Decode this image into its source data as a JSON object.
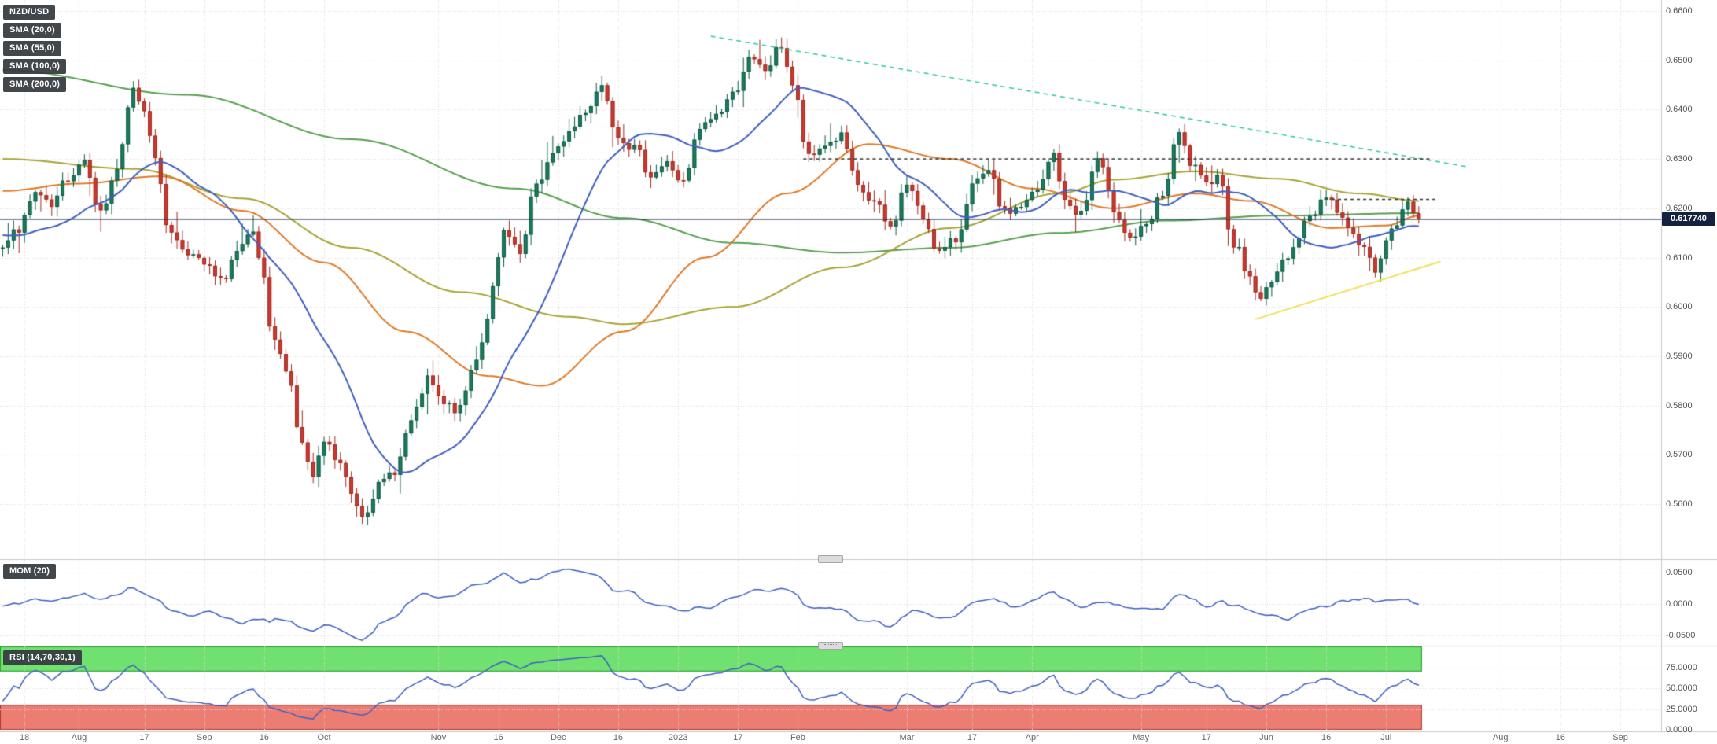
{
  "legend": {
    "symbol": "NZD/USD",
    "sma20": "SMA (20,0)",
    "sma55": "SMA (55,0)",
    "sma100": "SMA (100,0)",
    "sma200": "SMA (200,0)",
    "mom": "MOM (20)",
    "rsi": "RSI (14,70,30,1)"
  },
  "main": {
    "current_price": 0.61774,
    "current_price_label": "0.617740"
  },
  "axes": {
    "price_ticks": [
      {
        "label": "0.6600",
        "value": 0.66
      },
      {
        "label": "0.6500",
        "value": 0.65
      },
      {
        "label": "0.6400",
        "value": 0.64
      },
      {
        "label": "0.6300",
        "value": 0.63
      },
      {
        "label": "0.6200",
        "value": 0.62
      },
      {
        "label": "0.6100",
        "value": 0.61
      },
      {
        "label": "0.6000",
        "value": 0.6
      },
      {
        "label": "0.5900",
        "value": 0.59
      },
      {
        "label": "0.5800",
        "value": 0.58
      },
      {
        "label": "0.5700",
        "value": 0.57
      },
      {
        "label": "0.5600",
        "value": 0.56
      }
    ],
    "mom_ticks": [
      {
        "label": "0.0500",
        "value": 0.05
      },
      {
        "label": "0.0000",
        "value": 0.0
      },
      {
        "label": "-0.0500",
        "value": -0.05
      }
    ],
    "rsi_ticks": [
      {
        "label": "75.0000",
        "value": 75
      },
      {
        "label": "50.0000",
        "value": 50
      },
      {
        "label": "25.0000",
        "value": 25
      },
      {
        "label": "0.0000",
        "value": 0
      }
    ],
    "time_labels": [
      {
        "text": "18",
        "i": 4
      },
      {
        "text": "Aug",
        "i": 14
      },
      {
        "text": "17",
        "i": 26
      },
      {
        "text": "Sep",
        "i": 37
      },
      {
        "text": "16",
        "i": 48
      },
      {
        "text": "Oct",
        "i": 59
      },
      {
        "text": "Nov",
        "i": 80
      },
      {
        "text": "16",
        "i": 91
      },
      {
        "text": "Dec",
        "i": 102
      },
      {
        "text": "16",
        "i": 113
      },
      {
        "text": "2023",
        "i": 124
      },
      {
        "text": "17",
        "i": 135
      },
      {
        "text": "Feb",
        "i": 146
      },
      {
        "text": "Mar",
        "i": 166
      },
      {
        "text": "17",
        "i": 178
      },
      {
        "text": "Apr",
        "i": 189
      },
      {
        "text": "May",
        "i": 209
      },
      {
        "text": "17",
        "i": 221
      },
      {
        "text": "Jun",
        "i": 232
      },
      {
        "text": "16",
        "i": 243
      },
      {
        "text": "Jul",
        "i": 254
      },
      {
        "text": "Aug",
        "i": 275
      },
      {
        "text": "16",
        "i": 286
      },
      {
        "text": "Sep",
        "i": 297
      }
    ]
  },
  "colors": {
    "up": "#1c7c60",
    "up_border": "#0f5a44",
    "down": "#cb3a30",
    "down_border": "#9e2c23",
    "sma20": "#3f5fc0",
    "sma55": "#e07b28",
    "sma100": "#a8a434",
    "sma200": "#57a04f",
    "indicator_line": "#3f5fc0",
    "teal_dash": "#2fc9a2",
    "black_dash": "#333333",
    "yellow_line": "#efe25a",
    "price_line": "#1b2f55",
    "price_badge_bg": "#13233f",
    "rsi_upper_fill": "#70e170",
    "rsi_upper_border": "#2f9e2f",
    "rsi_lower_fill": "#ec7d72",
    "rsi_lower_border": "#b03a30",
    "grid": "#dcdcdc",
    "separator": "#c9c9c9",
    "axis_text": "#555555"
  },
  "chart_data": {
    "type": "candlestick",
    "symbol": "NZD/USD",
    "title": "NZD/USD daily candlestick chart with SMA(20,55,100,200), MOM(20) and RSI(14,70,30,1)",
    "ylim": [
      0.549,
      0.662
    ],
    "x_candle_count": 261,
    "x_axis_span": 305,
    "current_price": 0.61774,
    "price_keyframes": [
      [
        -25,
        0.6185
      ],
      [
        -18,
        0.615
      ],
      [
        -10,
        0.6165
      ],
      [
        -4,
        0.613
      ],
      [
        0,
        0.6125
      ],
      [
        3,
        0.616
      ],
      [
        6,
        0.623
      ],
      [
        9,
        0.62
      ],
      [
        12,
        0.6265
      ],
      [
        15,
        0.63
      ],
      [
        18,
        0.619
      ],
      [
        21,
        0.628
      ],
      [
        24,
        0.644
      ],
      [
        26,
        0.64
      ],
      [
        28,
        0.631
      ],
      [
        30,
        0.617
      ],
      [
        33,
        0.612
      ],
      [
        37,
        0.6085
      ],
      [
        40,
        0.605
      ],
      [
        43,
        0.611
      ],
      [
        46,
        0.6145
      ],
      [
        48,
        0.605
      ],
      [
        49,
        0.595
      ],
      [
        52,
        0.588
      ],
      [
        55,
        0.572
      ],
      [
        57,
        0.565
      ],
      [
        59,
        0.5725
      ],
      [
        62,
        0.568
      ],
      [
        64,
        0.562
      ],
      [
        66,
        0.558
      ],
      [
        69,
        0.5635
      ],
      [
        72,
        0.567
      ],
      [
        75,
        0.5765
      ],
      [
        78,
        0.585
      ],
      [
        81,
        0.58
      ],
      [
        84,
        0.579
      ],
      [
        86,
        0.587
      ],
      [
        88,
        0.593
      ],
      [
        90,
        0.6035
      ],
      [
        92,
        0.615
      ],
      [
        95,
        0.6105
      ],
      [
        98,
        0.625
      ],
      [
        101,
        0.6305
      ],
      [
        104,
        0.6355
      ],
      [
        107,
        0.64
      ],
      [
        110,
        0.645
      ],
      [
        113,
        0.635
      ],
      [
        116,
        0.632
      ],
      [
        119,
        0.627
      ],
      [
        122,
        0.629
      ],
      [
        125,
        0.625
      ],
      [
        128,
        0.636
      ],
      [
        131,
        0.639
      ],
      [
        134,
        0.643
      ],
      [
        137,
        0.65
      ],
      [
        140,
        0.648
      ],
      [
        143,
        0.653
      ],
      [
        145,
        0.645
      ],
      [
        148,
        0.63
      ],
      [
        151,
        0.633
      ],
      [
        154,
        0.6345
      ],
      [
        157,
        0.624
      ],
      [
        160,
        0.621
      ],
      [
        163,
        0.616
      ],
      [
        166,
        0.625
      ],
      [
        169,
        0.618
      ],
      [
        172,
        0.611
      ],
      [
        175,
        0.6135
      ],
      [
        178,
        0.6245
      ],
      [
        181,
        0.627
      ],
      [
        184,
        0.619
      ],
      [
        187,
        0.6205
      ],
      [
        190,
        0.6235
      ],
      [
        193,
        0.631
      ],
      [
        195,
        0.621
      ],
      [
        198,
        0.619
      ],
      [
        201,
        0.63
      ],
      [
        204,
        0.62
      ],
      [
        207,
        0.614
      ],
      [
        210,
        0.616
      ],
      [
        213,
        0.623
      ],
      [
        216,
        0.635
      ],
      [
        218,
        0.629
      ],
      [
        221,
        0.6245
      ],
      [
        223,
        0.6275
      ],
      [
        226,
        0.613
      ],
      [
        229,
        0.606
      ],
      [
        231,
        0.601
      ],
      [
        233,
        0.606
      ],
      [
        235,
        0.6085
      ],
      [
        237,
        0.613
      ],
      [
        240,
        0.618
      ],
      [
        243,
        0.623
      ],
      [
        246,
        0.618
      ],
      [
        249,
        0.613
      ],
      [
        252,
        0.608
      ],
      [
        254,
        0.613
      ],
      [
        256,
        0.617
      ],
      [
        258,
        0.621
      ],
      [
        260,
        0.61774
      ]
    ],
    "overlays": {
      "sma55_keyframes": [
        [
          0,
          0.6235
        ],
        [
          14,
          0.625
        ],
        [
          29,
          0.6265
        ],
        [
          44,
          0.6195
        ],
        [
          59,
          0.609
        ],
        [
          74,
          0.595
        ],
        [
          89,
          0.586
        ],
        [
          99,
          0.584
        ],
        [
          114,
          0.595
        ],
        [
          129,
          0.61
        ],
        [
          144,
          0.623
        ],
        [
          159,
          0.633
        ],
        [
          174,
          0.63
        ],
        [
          189,
          0.624
        ],
        [
          204,
          0.62
        ],
        [
          219,
          0.623
        ],
        [
          229,
          0.6215
        ],
        [
          244,
          0.616
        ],
        [
          254,
          0.6165
        ],
        [
          260,
          0.6185
        ]
      ],
      "sma100_keyframes": [
        [
          0,
          0.63
        ],
        [
          24,
          0.628
        ],
        [
          44,
          0.622
        ],
        [
          64,
          0.612
        ],
        [
          84,
          0.603
        ],
        [
          104,
          0.598
        ],
        [
          114,
          0.5965
        ],
        [
          134,
          0.6
        ],
        [
          154,
          0.608
        ],
        [
          174,
          0.616
        ],
        [
          194,
          0.623
        ],
        [
          204,
          0.6258
        ],
        [
          219,
          0.6275
        ],
        [
          234,
          0.626
        ],
        [
          249,
          0.623
        ],
        [
          260,
          0.6215
        ]
      ],
      "sma200_keyframes": [
        [
          0,
          0.648
        ],
        [
          34,
          0.643
        ],
        [
          64,
          0.634
        ],
        [
          94,
          0.624
        ],
        [
          114,
          0.618
        ],
        [
          134,
          0.613
        ],
        [
          154,
          0.611
        ],
        [
          174,
          0.612
        ],
        [
          194,
          0.615
        ],
        [
          214,
          0.6175
        ],
        [
          234,
          0.6185
        ],
        [
          260,
          0.619
        ]
      ]
    },
    "indicators": {
      "sma20_period": 20,
      "mom": {
        "period": 20,
        "ylim": [
          -0.065,
          0.07
        ]
      },
      "rsi": {
        "period": 14,
        "upper_level": 70,
        "lower_level": 30,
        "ylim": [
          0,
          100
        ]
      }
    },
    "trendlines": [
      {
        "name": "descending-resistance",
        "style": "dashed",
        "color": "teal",
        "from": [
          130,
          0.6549
        ],
        "to": [
          269,
          0.6284
        ]
      },
      {
        "name": "horizontal-resistance",
        "style": "dashed",
        "color": "black",
        "from": [
          147,
          0.63
        ],
        "to": [
          262,
          0.63
        ]
      },
      {
        "name": "minor-resistance",
        "style": "dashed",
        "color": "black",
        "from": [
          244,
          0.6218
        ],
        "to": [
          263,
          0.6218
        ]
      },
      {
        "name": "ascending-support",
        "style": "solid",
        "color": "yellow",
        "from": [
          230,
          0.5975
        ],
        "to": [
          264,
          0.6092
        ]
      }
    ]
  }
}
